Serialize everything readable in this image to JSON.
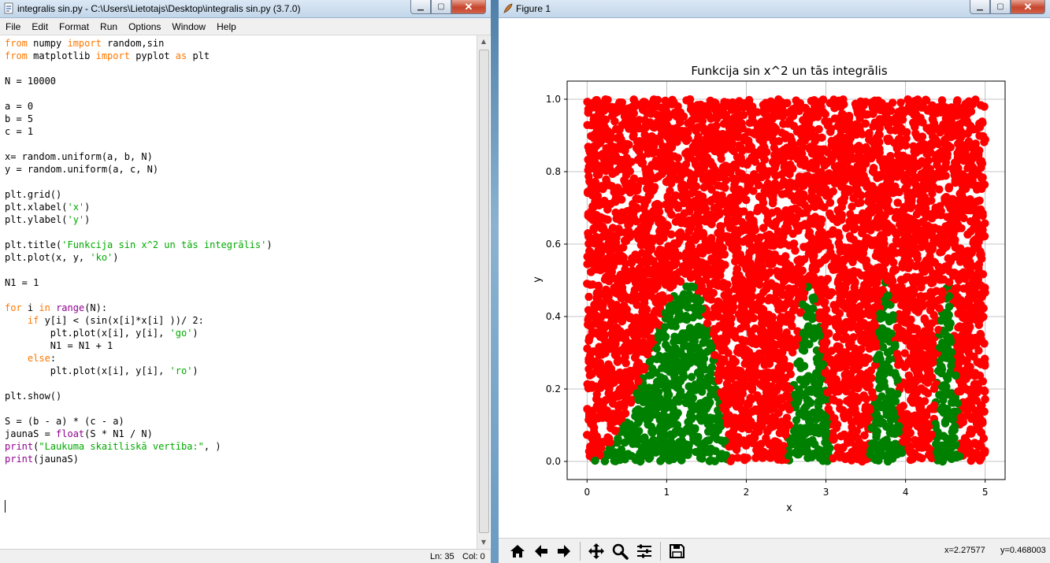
{
  "idle": {
    "title": "integralis sin.py - C:\\Users\\Lietotajs\\Desktop\\integralis sin.py (3.7.0)",
    "menu": [
      "File",
      "Edit",
      "Format",
      "Run",
      "Options",
      "Window",
      "Help"
    ],
    "code_lines": [
      [
        [
          "kw",
          "from"
        ],
        [
          "n",
          " numpy "
        ],
        [
          "kw",
          "import"
        ],
        [
          "n",
          " random,sin"
        ]
      ],
      [
        [
          "kw",
          "from"
        ],
        [
          "n",
          " matplotlib "
        ],
        [
          "kw",
          "import"
        ],
        [
          "n",
          " pyplot "
        ],
        [
          "kw",
          "as"
        ],
        [
          "n",
          " plt"
        ]
      ],
      [],
      [
        [
          "n",
          "N = 10000"
        ]
      ],
      [],
      [
        [
          "n",
          "a = 0"
        ]
      ],
      [
        [
          "n",
          "b = 5"
        ]
      ],
      [
        [
          "n",
          "c = 1"
        ]
      ],
      [],
      [
        [
          "n",
          "x= random.uniform(a, b, N)"
        ]
      ],
      [
        [
          "n",
          "y = random.uniform(a, c, N)"
        ]
      ],
      [],
      [
        [
          "n",
          "plt.grid()"
        ]
      ],
      [
        [
          "n",
          "plt.xlabel("
        ],
        [
          "str",
          "'x'"
        ],
        [
          "n",
          ")"
        ]
      ],
      [
        [
          "n",
          "plt.ylabel("
        ],
        [
          "str",
          "'y'"
        ],
        [
          "n",
          ")"
        ]
      ],
      [],
      [
        [
          "n",
          "plt.title("
        ],
        [
          "str",
          "'Funkcija sin x^2 un tās integrālis'"
        ],
        [
          "n",
          ")"
        ]
      ],
      [
        [
          "n",
          "plt.plot(x, y, "
        ],
        [
          "str",
          "'ko'"
        ],
        [
          "n",
          ")"
        ]
      ],
      [],
      [
        [
          "n",
          "N1 = 1"
        ]
      ],
      [],
      [
        [
          "kw",
          "for"
        ],
        [
          "n",
          " i "
        ],
        [
          "kw",
          "in"
        ],
        [
          "n",
          " "
        ],
        [
          "bi",
          "range"
        ],
        [
          "n",
          "(N):"
        ]
      ],
      [
        [
          "n",
          "    "
        ],
        [
          "kw",
          "if"
        ],
        [
          "n",
          " y[i] < (sin(x[i]*x[i] ))/ 2:"
        ]
      ],
      [
        [
          "n",
          "        plt.plot(x[i], y[i], "
        ],
        [
          "str",
          "'go'"
        ],
        [
          "n",
          ")"
        ]
      ],
      [
        [
          "n",
          "        N1 = N1 + 1"
        ]
      ],
      [
        [
          "n",
          "    "
        ],
        [
          "kw",
          "else"
        ],
        [
          "n",
          ":"
        ]
      ],
      [
        [
          "n",
          "        plt.plot(x[i], y[i], "
        ],
        [
          "str",
          "'ro'"
        ],
        [
          "n",
          ")"
        ]
      ],
      [],
      [
        [
          "n",
          "plt.show()"
        ]
      ],
      [],
      [
        [
          "n",
          "S = (b - a) * (c - a)"
        ]
      ],
      [
        [
          "n",
          "jaunaS = "
        ],
        [
          "bi",
          "float"
        ],
        [
          "n",
          "(S * N1 / N)"
        ]
      ],
      [
        [
          "bi",
          "print"
        ],
        [
          "n",
          "("
        ],
        [
          "str",
          "\"Laukuma skaitliskā vertība:\""
        ],
        [
          "n",
          ", )"
        ]
      ],
      [
        [
          "bi",
          "print"
        ],
        [
          "n",
          "(jaunaS)"
        ]
      ]
    ],
    "status": {
      "ln": "Ln: 35",
      "col": "Col: 0"
    },
    "colors": {
      "kw": "#ff7700",
      "str": "#00aa00",
      "bi": "#900090",
      "n": "#000000"
    }
  },
  "figure": {
    "title": "Figure 1",
    "coords": {
      "x": "x=2.27577",
      "y": "y=0.468003"
    },
    "toolbar_icons": [
      "home-icon",
      "back-arrow-icon",
      "forward-arrow-icon",
      "pan-icon",
      "zoom-icon",
      "subplots-icon",
      "save-icon"
    ]
  },
  "chart_data": {
    "type": "scatter",
    "title": "Funkcija sin x^2 un tās integrālis",
    "xlabel": "x",
    "ylabel": "y",
    "xlim": [
      -0.25,
      5.25
    ],
    "ylim": [
      -0.05,
      1.05
    ],
    "xticks": [
      "0",
      "1",
      "2",
      "3",
      "4",
      "5"
    ],
    "yticks": [
      "0.0",
      "0.2",
      "0.4",
      "0.6",
      "0.8",
      "1.0"
    ],
    "grid": true,
    "points": 10000,
    "x_range": [
      0,
      5
    ],
    "y_range": [
      0,
      1
    ],
    "rule": "green where y < sin(x*x)/2, red otherwise",
    "colors": {
      "below": "#008000",
      "above": "#ff0000"
    }
  }
}
